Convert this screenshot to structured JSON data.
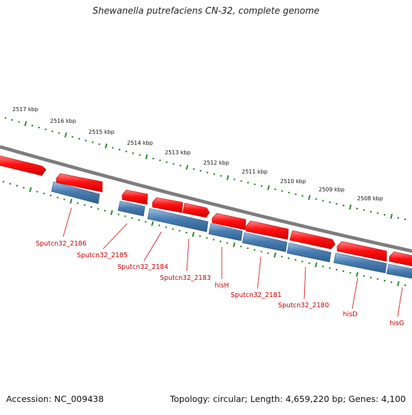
{
  "title": "Shewanella putrefaciens CN-32, complete genome",
  "footer": {
    "accession": "Accession: NC_009438",
    "stats": "Topology: circular; Length: 4,659,220 bp; Genes: 4,100"
  },
  "colors": {
    "forward_strand": "#ee1111",
    "reverse_strand": "#4a7db0",
    "backbone": "#888888",
    "ticks": "#228822",
    "labels": "#cc0000"
  },
  "ruler": [
    {
      "label": "2517 kbp"
    },
    {
      "label": "2516 kbp"
    },
    {
      "label": "2515 kbp"
    },
    {
      "label": "2514 kbp"
    },
    {
      "label": "2513 kbp"
    },
    {
      "label": "2512 kbp"
    },
    {
      "label": "2511 kbp"
    },
    {
      "label": "2510 kbp"
    },
    {
      "label": "2509 kbp"
    },
    {
      "label": "2508 kbp"
    }
  ],
  "genes": [
    {
      "label": "Sputcn32_2186"
    },
    {
      "label": "Sputcn32_2185"
    },
    {
      "label": "Sputcn32_2184"
    },
    {
      "label": "Sputcn32_2183"
    },
    {
      "label": "hisH"
    },
    {
      "label": "Sputcn32_2181"
    },
    {
      "label": "Sputcn32_2180"
    },
    {
      "label": "hisD"
    },
    {
      "label": "hisG"
    }
  ]
}
